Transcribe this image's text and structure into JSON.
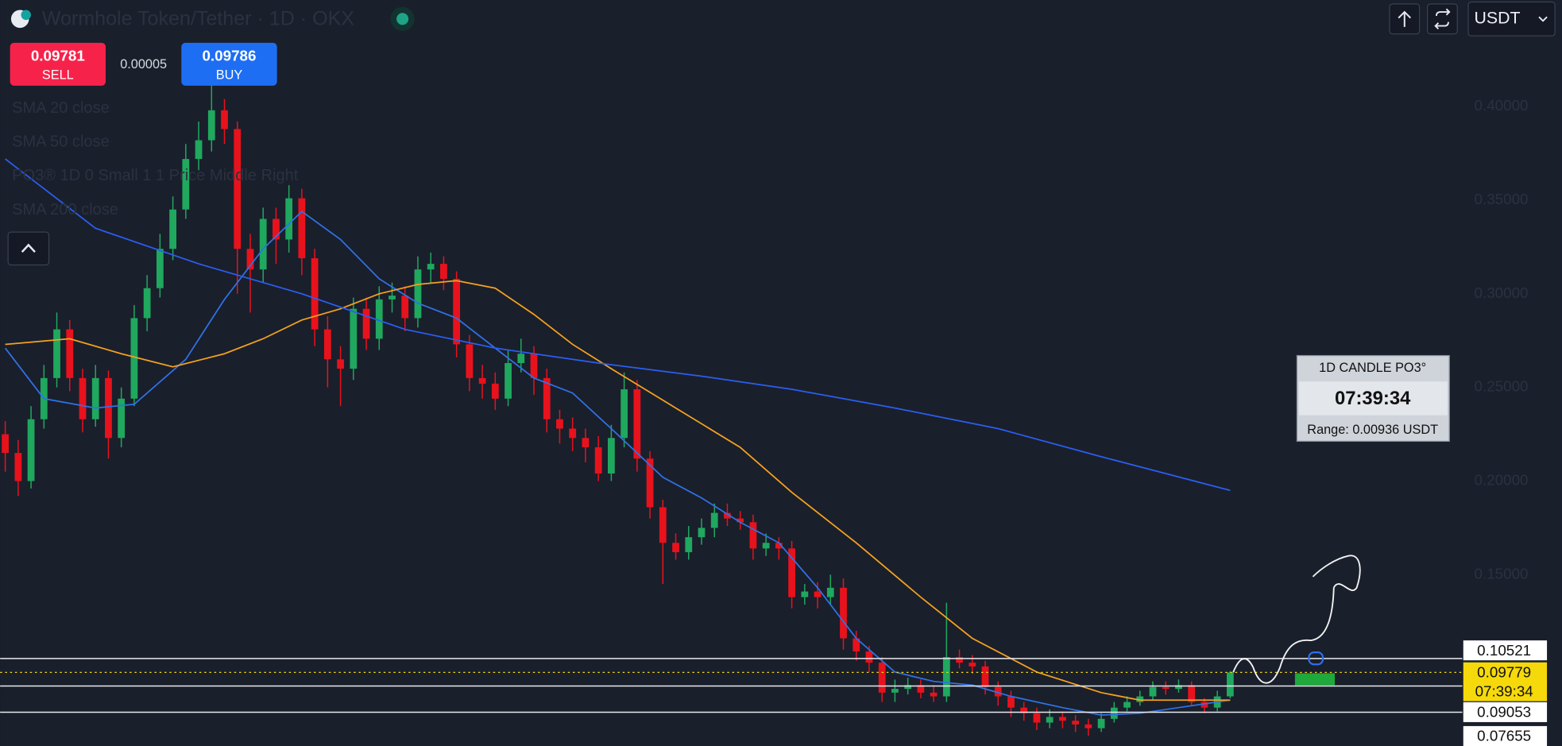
{
  "header": {
    "title": "Wormhole Token/Tether · 1D · OKX",
    "sell_price": 0.09781,
    "sell_label": "SELL",
    "spread": 5e-05,
    "buy_price": 0.09786,
    "buy_label": "BUY",
    "currency": "USDT"
  },
  "po3_panel": {
    "title": "1D CANDLE PO3°",
    "countdown": "07:39:34",
    "range": "Range: 0.00936 USDT",
    "legend": "PO3® 1D 0 Small 1 1 Price Middle Right"
  },
  "chart_data": {
    "type": "candlestick",
    "up_color": "#1fa85e",
    "down_color": "#e8121c",
    "xlim": [
      -0.4,
      113
    ],
    "ylim": [
      0.0585,
      0.4569
    ],
    "yticks": [
      {
        "value": 0.4,
        "label": "0.40000"
      },
      {
        "value": 0.35,
        "label": "0.35000"
      },
      {
        "value": 0.3,
        "label": "0.30000"
      },
      {
        "value": 0.25,
        "label": "0.25000"
      },
      {
        "value": 0.2,
        "label": "0.20000"
      },
      {
        "value": 0.15,
        "label": "0.15000"
      }
    ],
    "ohlc": [
      [
        0.225,
        0.232,
        0.205,
        0.215
      ],
      [
        0.215,
        0.222,
        0.192,
        0.2
      ],
      [
        0.2,
        0.24,
        0.196,
        0.233
      ],
      [
        0.233,
        0.262,
        0.228,
        0.255
      ],
      [
        0.255,
        0.29,
        0.25,
        0.281
      ],
      [
        0.281,
        0.286,
        0.248,
        0.255
      ],
      [
        0.255,
        0.26,
        0.226,
        0.233
      ],
      [
        0.233,
        0.262,
        0.229,
        0.255
      ],
      [
        0.255,
        0.259,
        0.212,
        0.223
      ],
      [
        0.223,
        0.25,
        0.218,
        0.244
      ],
      [
        0.244,
        0.294,
        0.24,
        0.287
      ],
      [
        0.287,
        0.31,
        0.28,
        0.303
      ],
      [
        0.303,
        0.332,
        0.298,
        0.324
      ],
      [
        0.324,
        0.352,
        0.318,
        0.345
      ],
      [
        0.345,
        0.38,
        0.34,
        0.372
      ],
      [
        0.372,
        0.392,
        0.366,
        0.382
      ],
      [
        0.382,
        0.412,
        0.376,
        0.398
      ],
      [
        0.398,
        0.404,
        0.38,
        0.388
      ],
      [
        0.388,
        0.392,
        0.3,
        0.324
      ],
      [
        0.324,
        0.332,
        0.29,
        0.313
      ],
      [
        0.313,
        0.346,
        0.306,
        0.34
      ],
      [
        0.34,
        0.346,
        0.316,
        0.329
      ],
      [
        0.329,
        0.358,
        0.322,
        0.351
      ],
      [
        0.351,
        0.356,
        0.31,
        0.319
      ],
      [
        0.319,
        0.324,
        0.272,
        0.281
      ],
      [
        0.281,
        0.288,
        0.25,
        0.265
      ],
      [
        0.265,
        0.272,
        0.24,
        0.26
      ],
      [
        0.26,
        0.298,
        0.254,
        0.292
      ],
      [
        0.292,
        0.298,
        0.27,
        0.276
      ],
      [
        0.276,
        0.304,
        0.27,
        0.297
      ],
      [
        0.297,
        0.306,
        0.29,
        0.299
      ],
      [
        0.299,
        0.304,
        0.28,
        0.287
      ],
      [
        0.287,
        0.32,
        0.282,
        0.313
      ],
      [
        0.313,
        0.322,
        0.306,
        0.316
      ],
      [
        0.316,
        0.32,
        0.302,
        0.308
      ],
      [
        0.308,
        0.312,
        0.266,
        0.273
      ],
      [
        0.273,
        0.278,
        0.248,
        0.255
      ],
      [
        0.255,
        0.262,
        0.244,
        0.252
      ],
      [
        0.252,
        0.258,
        0.238,
        0.244
      ],
      [
        0.244,
        0.27,
        0.24,
        0.263
      ],
      [
        0.263,
        0.276,
        0.258,
        0.268
      ],
      [
        0.268,
        0.272,
        0.246,
        0.255
      ],
      [
        0.255,
        0.26,
        0.226,
        0.233
      ],
      [
        0.233,
        0.238,
        0.22,
        0.228
      ],
      [
        0.228,
        0.234,
        0.216,
        0.223
      ],
      [
        0.223,
        0.228,
        0.21,
        0.218
      ],
      [
        0.218,
        0.224,
        0.2,
        0.204
      ],
      [
        0.204,
        0.23,
        0.2,
        0.223
      ],
      [
        0.223,
        0.258,
        0.218,
        0.249
      ],
      [
        0.249,
        0.254,
        0.205,
        0.212
      ],
      [
        0.212,
        0.216,
        0.18,
        0.186
      ],
      [
        0.186,
        0.19,
        0.145,
        0.167
      ],
      [
        0.167,
        0.172,
        0.158,
        0.162
      ],
      [
        0.162,
        0.176,
        0.158,
        0.17
      ],
      [
        0.17,
        0.18,
        0.166,
        0.175
      ],
      [
        0.175,
        0.188,
        0.17,
        0.183
      ],
      [
        0.183,
        0.188,
        0.176,
        0.18
      ],
      [
        0.18,
        0.184,
        0.174,
        0.178
      ],
      [
        0.178,
        0.182,
        0.158,
        0.164
      ],
      [
        0.164,
        0.172,
        0.16,
        0.167
      ],
      [
        0.167,
        0.17,
        0.158,
        0.164
      ],
      [
        0.164,
        0.168,
        0.132,
        0.138
      ],
      [
        0.138,
        0.145,
        0.134,
        0.141
      ],
      [
        0.141,
        0.146,
        0.132,
        0.138
      ],
      [
        0.138,
        0.15,
        0.134,
        0.143
      ],
      [
        0.143,
        0.148,
        0.11,
        0.116
      ],
      [
        0.116,
        0.12,
        0.104,
        0.109
      ],
      [
        0.109,
        0.112,
        0.098,
        0.103
      ],
      [
        0.103,
        0.106,
        0.082,
        0.087
      ],
      [
        0.087,
        0.094,
        0.082,
        0.089
      ],
      [
        0.089,
        0.095,
        0.086,
        0.091
      ],
      [
        0.091,
        0.094,
        0.084,
        0.087
      ],
      [
        0.087,
        0.091,
        0.082,
        0.085
      ],
      [
        0.085,
        0.135,
        0.082,
        0.106
      ],
      [
        0.106,
        0.11,
        0.1,
        0.103
      ],
      [
        0.103,
        0.107,
        0.097,
        0.101
      ],
      [
        0.101,
        0.104,
        0.086,
        0.09
      ],
      [
        0.09,
        0.093,
        0.08,
        0.085
      ],
      [
        0.085,
        0.088,
        0.074,
        0.079
      ],
      [
        0.079,
        0.082,
        0.072,
        0.076
      ],
      [
        0.076,
        0.079,
        0.067,
        0.071
      ],
      [
        0.071,
        0.078,
        0.068,
        0.074
      ],
      [
        0.074,
        0.077,
        0.068,
        0.072
      ],
      [
        0.072,
        0.075,
        0.066,
        0.07
      ],
      [
        0.07,
        0.073,
        0.064,
        0.068
      ],
      [
        0.068,
        0.076,
        0.066,
        0.073
      ],
      [
        0.073,
        0.082,
        0.071,
        0.079
      ],
      [
        0.079,
        0.085,
        0.077,
        0.082
      ],
      [
        0.082,
        0.088,
        0.08,
        0.085
      ],
      [
        0.085,
        0.093,
        0.083,
        0.09
      ],
      [
        0.09,
        0.093,
        0.086,
        0.089
      ],
      [
        0.089,
        0.094,
        0.087,
        0.091
      ],
      [
        0.091,
        0.093,
        0.08,
        0.082
      ],
      [
        0.082,
        0.084,
        0.076,
        0.079
      ],
      [
        0.079,
        0.088,
        0.077,
        0.085
      ],
      [
        0.085,
        0.0985,
        0.084,
        0.09779
      ]
    ],
    "series": [
      {
        "name": "SMA 20 close",
        "color": "#2f72e6",
        "x": [
          0,
          3,
          7,
          10,
          14,
          17,
          20,
          23,
          26,
          29,
          32,
          35,
          38,
          41,
          44,
          47,
          51,
          54,
          57,
          60,
          63,
          66,
          69,
          72,
          75,
          78,
          82,
          85,
          88,
          91,
          95
        ],
        "values": [
          0.271,
          0.244,
          0.239,
          0.241,
          0.265,
          0.297,
          0.324,
          0.344,
          0.329,
          0.308,
          0.295,
          0.287,
          0.271,
          0.255,
          0.247,
          0.228,
          0.202,
          0.191,
          0.178,
          0.167,
          0.143,
          0.116,
          0.098,
          0.093,
          0.091,
          0.085,
          0.079,
          0.075,
          0.076,
          0.079,
          0.083
        ]
      },
      {
        "name": "SMA 50 close",
        "color": "#f5a21e",
        "x": [
          0,
          5,
          9,
          13,
          17,
          20,
          23,
          26,
          29,
          32,
          35,
          38,
          41,
          44,
          47,
          52,
          57,
          61,
          66,
          71,
          75,
          80,
          85,
          88,
          95
        ],
        "values": [
          0.273,
          0.276,
          0.268,
          0.261,
          0.268,
          0.276,
          0.286,
          0.292,
          0.3,
          0.305,
          0.307,
          0.303,
          0.289,
          0.273,
          0.26,
          0.239,
          0.218,
          0.194,
          0.167,
          0.138,
          0.116,
          0.098,
          0.087,
          0.083,
          0.083
        ]
      },
      {
        "name": "SMA 200 close",
        "color": "#2a5ff0",
        "x": [
          0,
          7,
          15,
          23,
          31,
          38,
          46,
          54,
          61,
          69,
          77,
          85,
          95
        ],
        "values": [
          0.372,
          0.335,
          0.316,
          0.3,
          0.281,
          0.271,
          0.263,
          0.256,
          0.249,
          0.239,
          0.228,
          0.213,
          0.195
        ]
      }
    ],
    "levels": [
      0.10521,
      0.09053,
      0.07655
    ],
    "last_price": 0.09779,
    "last_color": "#f5d90a"
  }
}
